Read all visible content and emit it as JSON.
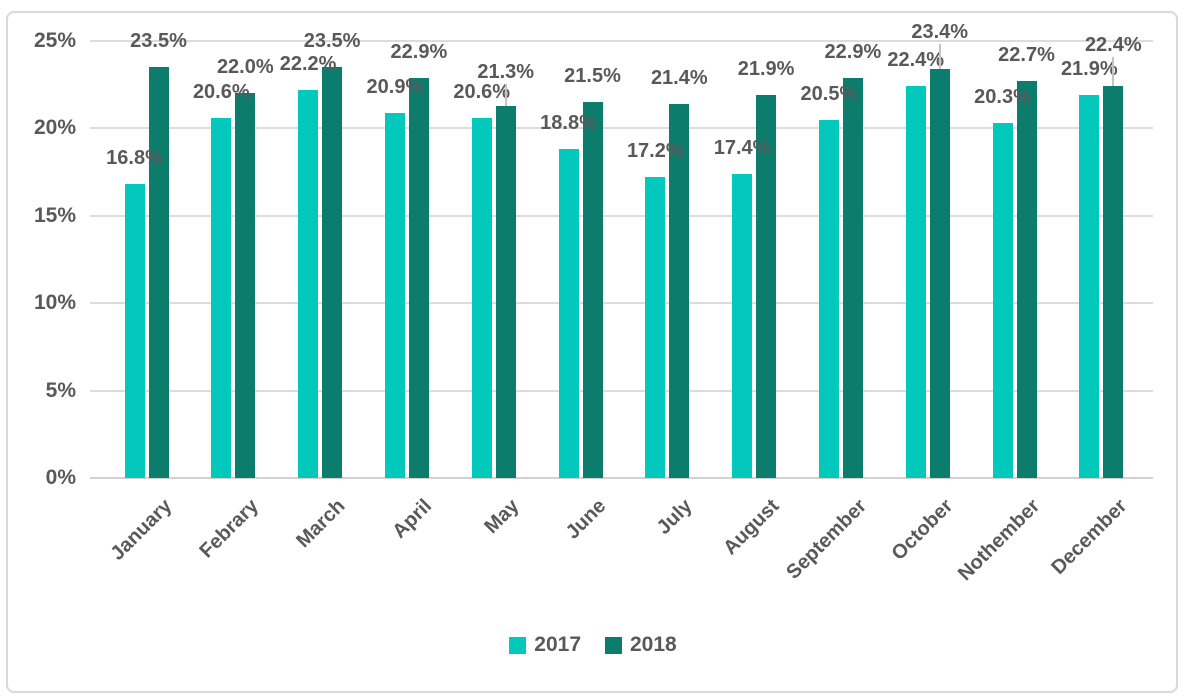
{
  "chart_data": {
    "type": "bar",
    "title": "",
    "categories": [
      "January",
      "Febrary",
      "March",
      "April",
      "May",
      "June",
      "July",
      "August",
      "September",
      "October",
      "Nothember",
      "December"
    ],
    "series": [
      {
        "name": "2017",
        "color": "#02c9bb",
        "values": [
          16.8,
          20.6,
          22.2,
          20.9,
          20.6,
          18.8,
          17.2,
          17.4,
          20.5,
          22.4,
          20.3,
          21.9
        ]
      },
      {
        "name": "2018",
        "color": "#0c7d6d",
        "values": [
          23.5,
          22.0,
          23.5,
          22.9,
          21.3,
          21.5,
          21.4,
          21.9,
          22.9,
          23.4,
          22.7,
          22.4
        ]
      }
    ],
    "y_axis": {
      "ticks": [
        "0%",
        "5%",
        "10%",
        "15%",
        "20%",
        "25%"
      ],
      "min": 0,
      "max": 25,
      "tick_step": 5,
      "suffix": "%"
    },
    "data_labels": {
      "show": true,
      "decimals": 1,
      "suffix": "%"
    },
    "grid": true,
    "legend_position": "bottom",
    "label_adjustments": [
      {
        "series_index": 1,
        "point_index": 4,
        "dy": -8,
        "leader": true
      },
      {
        "series_index": 1,
        "point_index": 9,
        "dy": -11,
        "leader": true
      },
      {
        "series_index": 1,
        "point_index": 11,
        "dy": -15,
        "leader": true
      }
    ],
    "colors": {
      "text": "#595959",
      "grid": "#dcdcdc",
      "axis_line": "#d2d2d2",
      "leader_line": "#c4c4c4",
      "frame_border": "#d9d9d9",
      "background": "#ffffff"
    }
  }
}
